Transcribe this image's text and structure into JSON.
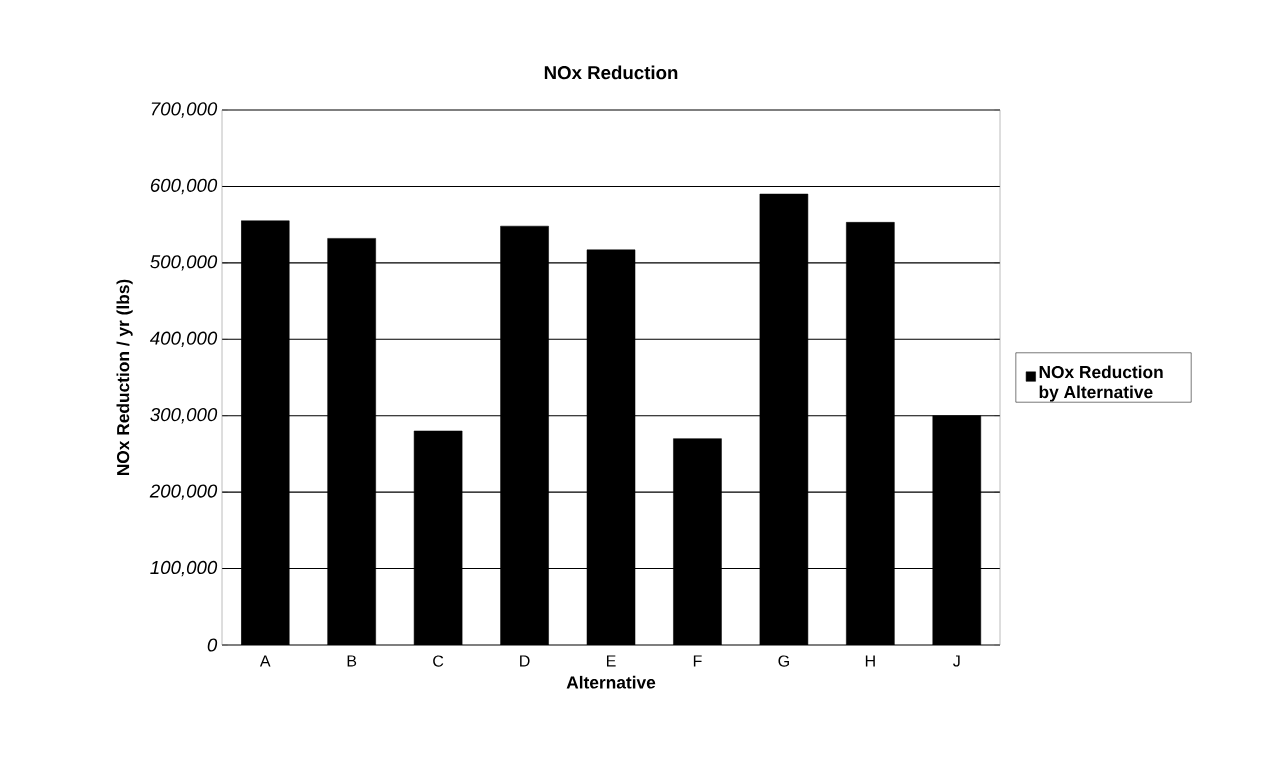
{
  "chart_data": {
    "type": "bar",
    "title": "NOx Reduction",
    "xlabel": "Alternative",
    "ylabel": "NOx Reduction / yr (lbs)",
    "categories": [
      "A",
      "B",
      "C",
      "D",
      "E",
      "F",
      "G",
      "H",
      "J"
    ],
    "series": [
      {
        "name": "NOx Reduction by Alternative",
        "color": "#000000",
        "values": [
          555000,
          532000,
          280000,
          548000,
          517000,
          270000,
          590000,
          553000,
          300000
        ]
      }
    ],
    "ylim": [
      0,
      700000
    ],
    "yticks": [
      0,
      {
        "value": 100000,
        "label": "100,000"
      },
      {
        "value": 200000,
        "label": "200,000"
      },
      {
        "value": 300000,
        "label": "300,000"
      },
      {
        "value": 400000,
        "label": "400,000"
      },
      {
        "value": 500000,
        "label": "500,000"
      },
      {
        "value": 600000,
        "label": "600,000"
      },
      {
        "value": 700000,
        "label": "700,000"
      }
    ],
    "grid": "y",
    "legend": "right"
  }
}
